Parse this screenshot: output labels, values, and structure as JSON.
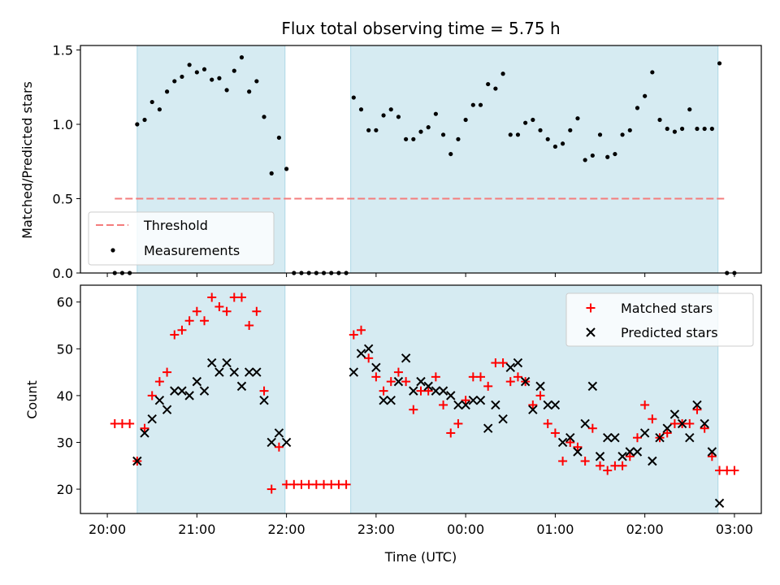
{
  "chart_data": [
    {
      "type": "scatter",
      "title": "Flux total observing time = 5.75 h",
      "ylabel": "Matched/Predicted stars",
      "xlabel": "",
      "ylim": [
        0,
        1.53
      ],
      "yticks": [
        "0.0",
        "0.5",
        "1.0",
        "1.5"
      ],
      "xlim_hours": [
        -0.3,
        7.3
      ],
      "x_axis_start": "20:00",
      "legend_position": "lower-left",
      "shaded_intervals": [
        [
          "20:20",
          "21:59"
        ],
        [
          "22:43",
          "02:49"
        ]
      ],
      "threshold": {
        "name": "Threshold",
        "value": 0.5,
        "x_range": [
          "20:05",
          "02:55"
        ],
        "color": "#f47c7c"
      },
      "series": [
        {
          "name": "Measurements",
          "color": "#000000",
          "marker": "dot",
          "points": [
            [
              "20:05",
              0.0
            ],
            [
              "20:10",
              0.0
            ],
            [
              "20:15",
              0.0
            ],
            [
              "20:20",
              1.0
            ],
            [
              "20:25",
              1.03
            ],
            [
              "20:30",
              1.15
            ],
            [
              "20:35",
              1.1
            ],
            [
              "20:40",
              1.22
            ],
            [
              "20:45",
              1.29
            ],
            [
              "20:50",
              1.32
            ],
            [
              "20:55",
              1.4
            ],
            [
              "21:00",
              1.35
            ],
            [
              "21:05",
              1.37
            ],
            [
              "21:10",
              1.3
            ],
            [
              "21:15",
              1.31
            ],
            [
              "21:20",
              1.23
            ],
            [
              "21:25",
              1.36
            ],
            [
              "21:30",
              1.45
            ],
            [
              "21:35",
              1.22
            ],
            [
              "21:40",
              1.29
            ],
            [
              "21:45",
              1.05
            ],
            [
              "21:50",
              0.67
            ],
            [
              "21:55",
              0.91
            ],
            [
              "22:00",
              0.7
            ],
            [
              "22:05",
              0.0
            ],
            [
              "22:10",
              0.0
            ],
            [
              "22:15",
              0.0
            ],
            [
              "22:20",
              0.0
            ],
            [
              "22:25",
              0.0
            ],
            [
              "22:30",
              0.0
            ],
            [
              "22:35",
              0.0
            ],
            [
              "22:40",
              0.0
            ],
            [
              "22:45",
              1.18
            ],
            [
              "22:50",
              1.1
            ],
            [
              "22:55",
              0.96
            ],
            [
              "23:00",
              0.96
            ],
            [
              "23:05",
              1.06
            ],
            [
              "23:10",
              1.1
            ],
            [
              "23:15",
              1.05
            ],
            [
              "23:20",
              0.9
            ],
            [
              "23:25",
              0.9
            ],
            [
              "23:30",
              0.95
            ],
            [
              "23:35",
              0.98
            ],
            [
              "23:40",
              1.07
            ],
            [
              "23:45",
              0.93
            ],
            [
              "23:50",
              0.8
            ],
            [
              "23:55",
              0.9
            ],
            [
              "00:00",
              1.03
            ],
            [
              "00:05",
              1.13
            ],
            [
              "00:10",
              1.13
            ],
            [
              "00:15",
              1.27
            ],
            [
              "00:20",
              1.24
            ],
            [
              "00:25",
              1.34
            ],
            [
              "00:30",
              0.93
            ],
            [
              "00:35",
              0.93
            ],
            [
              "00:40",
              1.01
            ],
            [
              "00:45",
              1.03
            ],
            [
              "00:50",
              0.96
            ],
            [
              "00:55",
              0.9
            ],
            [
              "01:00",
              0.85
            ],
            [
              "01:05",
              0.87
            ],
            [
              "01:10",
              0.96
            ],
            [
              "01:15",
              1.04
            ],
            [
              "01:20",
              0.76
            ],
            [
              "01:25",
              0.79
            ],
            [
              "01:30",
              0.93
            ],
            [
              "01:35",
              0.78
            ],
            [
              "01:40",
              0.8
            ],
            [
              "01:45",
              0.93
            ],
            [
              "01:50",
              0.96
            ],
            [
              "01:55",
              1.11
            ],
            [
              "02:00",
              1.19
            ],
            [
              "02:05",
              1.35
            ],
            [
              "02:10",
              1.03
            ],
            [
              "02:15",
              0.97
            ],
            [
              "02:20",
              0.95
            ],
            [
              "02:25",
              0.97
            ],
            [
              "02:30",
              1.1
            ],
            [
              "02:35",
              0.97
            ],
            [
              "02:40",
              0.97
            ],
            [
              "02:45",
              0.97
            ],
            [
              "02:50",
              1.41
            ],
            [
              "02:55",
              0.0
            ],
            [
              "03:00",
              0.0
            ]
          ]
        }
      ]
    },
    {
      "type": "scatter",
      "title": "",
      "ylabel": "Count",
      "xlabel": "Time (UTC)",
      "ylim": [
        14.8,
        63.6
      ],
      "yticks": [
        "20",
        "30",
        "40",
        "50",
        "60"
      ],
      "xticks": [
        "20:00",
        "21:00",
        "22:00",
        "23:00",
        "00:00",
        "01:00",
        "02:00",
        "03:00"
      ],
      "xlim_hours": [
        -0.3,
        7.3
      ],
      "x_axis_start": "20:00",
      "legend_position": "top-right",
      "shaded_intervals": [
        [
          "20:20",
          "21:59"
        ],
        [
          "22:43",
          "02:49"
        ]
      ],
      "series": [
        {
          "name": "Matched stars",
          "color": "#ff0000",
          "marker": "plus",
          "points": [
            [
              "20:05",
              34
            ],
            [
              "20:10",
              34
            ],
            [
              "20:15",
              34
            ],
            [
              "20:20",
              26
            ],
            [
              "20:25",
              33
            ],
            [
              "20:30",
              40
            ],
            [
              "20:35",
              43
            ],
            [
              "20:40",
              45
            ],
            [
              "20:45",
              53
            ],
            [
              "20:50",
              54
            ],
            [
              "20:55",
              56
            ],
            [
              "21:00",
              58
            ],
            [
              "21:05",
              56
            ],
            [
              "21:10",
              61
            ],
            [
              "21:15",
              59
            ],
            [
              "21:20",
              58
            ],
            [
              "21:25",
              61
            ],
            [
              "21:30",
              61
            ],
            [
              "21:35",
              55
            ],
            [
              "21:40",
              58
            ],
            [
              "21:45",
              41
            ],
            [
              "21:50",
              20
            ],
            [
              "21:55",
              29
            ],
            [
              "22:00",
              21
            ],
            [
              "22:05",
              21
            ],
            [
              "22:10",
              21
            ],
            [
              "22:15",
              21
            ],
            [
              "22:20",
              21
            ],
            [
              "22:25",
              21
            ],
            [
              "22:30",
              21
            ],
            [
              "22:35",
              21
            ],
            [
              "22:40",
              21
            ],
            [
              "22:45",
              53
            ],
            [
              "22:50",
              54
            ],
            [
              "22:55",
              48
            ],
            [
              "23:00",
              44
            ],
            [
              "23:05",
              41
            ],
            [
              "23:10",
              43
            ],
            [
              "23:15",
              45
            ],
            [
              "23:20",
              43
            ],
            [
              "23:25",
              37
            ],
            [
              "23:30",
              41
            ],
            [
              "23:35",
              41
            ],
            [
              "23:40",
              44
            ],
            [
              "23:45",
              38
            ],
            [
              "23:50",
              32
            ],
            [
              "23:55",
              34
            ],
            [
              "00:00",
              39
            ],
            [
              "00:05",
              44
            ],
            [
              "00:10",
              44
            ],
            [
              "00:15",
              42
            ],
            [
              "00:20",
              47
            ],
            [
              "00:25",
              47
            ],
            [
              "00:30",
              43
            ],
            [
              "00:35",
              44
            ],
            [
              "00:40",
              43
            ],
            [
              "00:45",
              38
            ],
            [
              "00:50",
              40
            ],
            [
              "00:55",
              34
            ],
            [
              "01:00",
              32
            ],
            [
              "01:05",
              26
            ],
            [
              "01:10",
              30
            ],
            [
              "01:15",
              29
            ],
            [
              "01:20",
              26
            ],
            [
              "01:25",
              33
            ],
            [
              "01:30",
              25
            ],
            [
              "01:35",
              24
            ],
            [
              "01:40",
              25
            ],
            [
              "01:45",
              25
            ],
            [
              "01:50",
              27
            ],
            [
              "01:55",
              31
            ],
            [
              "02:00",
              38
            ],
            [
              "02:05",
              35
            ],
            [
              "02:10",
              31
            ],
            [
              "02:15",
              32
            ],
            [
              "02:20",
              34
            ],
            [
              "02:25",
              34
            ],
            [
              "02:30",
              34
            ],
            [
              "02:35",
              37
            ],
            [
              "02:40",
              33
            ],
            [
              "02:45",
              27
            ],
            [
              "02:50",
              24
            ],
            [
              "02:55",
              24
            ],
            [
              "03:00",
              24
            ]
          ]
        },
        {
          "name": "Predicted stars",
          "color": "#000000",
          "marker": "cross",
          "points": [
            [
              "20:20",
              26
            ],
            [
              "20:25",
              32
            ],
            [
              "20:30",
              35
            ],
            [
              "20:35",
              39
            ],
            [
              "20:40",
              37
            ],
            [
              "20:45",
              41
            ],
            [
              "20:50",
              41
            ],
            [
              "20:55",
              40
            ],
            [
              "21:00",
              43
            ],
            [
              "21:05",
              41
            ],
            [
              "21:10",
              47
            ],
            [
              "21:15",
              45
            ],
            [
              "21:20",
              47
            ],
            [
              "21:25",
              45
            ],
            [
              "21:30",
              42
            ],
            [
              "21:35",
              45
            ],
            [
              "21:40",
              45
            ],
            [
              "21:45",
              39
            ],
            [
              "21:50",
              30
            ],
            [
              "21:55",
              32
            ],
            [
              "22:00",
              30
            ],
            [
              "22:45",
              45
            ],
            [
              "22:50",
              49
            ],
            [
              "22:55",
              50
            ],
            [
              "23:00",
              46
            ],
            [
              "23:05",
              39
            ],
            [
              "23:10",
              39
            ],
            [
              "23:15",
              43
            ],
            [
              "23:20",
              48
            ],
            [
              "23:25",
              41
            ],
            [
              "23:30",
              43
            ],
            [
              "23:35",
              42
            ],
            [
              "23:40",
              41
            ],
            [
              "23:45",
              41
            ],
            [
              "23:50",
              40
            ],
            [
              "23:55",
              38
            ],
            [
              "00:00",
              38
            ],
            [
              "00:05",
              39
            ],
            [
              "00:10",
              39
            ],
            [
              "00:15",
              33
            ],
            [
              "00:20",
              38
            ],
            [
              "00:25",
              35
            ],
            [
              "00:30",
              46
            ],
            [
              "00:35",
              47
            ],
            [
              "00:40",
              43
            ],
            [
              "00:45",
              37
            ],
            [
              "00:50",
              42
            ],
            [
              "00:55",
              38
            ],
            [
              "01:00",
              38
            ],
            [
              "01:05",
              30
            ],
            [
              "01:10",
              31
            ],
            [
              "01:15",
              28
            ],
            [
              "01:20",
              34
            ],
            [
              "01:25",
              42
            ],
            [
              "01:30",
              27
            ],
            [
              "01:35",
              31
            ],
            [
              "01:40",
              31
            ],
            [
              "01:45",
              27
            ],
            [
              "01:50",
              28
            ],
            [
              "01:55",
              28
            ],
            [
              "02:00",
              32
            ],
            [
              "02:05",
              26
            ],
            [
              "02:10",
              31
            ],
            [
              "02:15",
              33
            ],
            [
              "02:20",
              36
            ],
            [
              "02:25",
              34
            ],
            [
              "02:30",
              31
            ],
            [
              "02:35",
              38
            ],
            [
              "02:40",
              34
            ],
            [
              "02:45",
              28
            ],
            [
              "02:50",
              17
            ]
          ]
        }
      ]
    }
  ]
}
